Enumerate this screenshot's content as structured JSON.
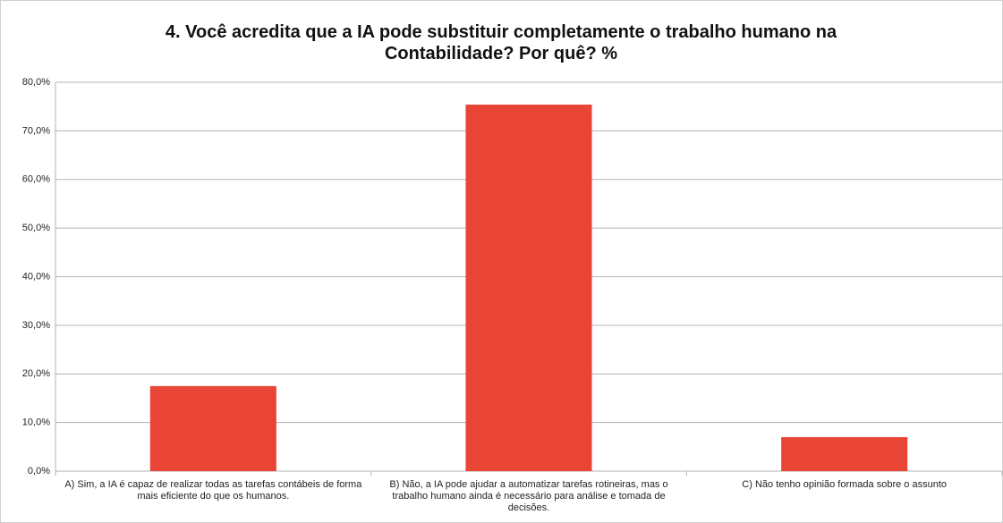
{
  "chart_data": {
    "type": "bar",
    "title": "4. Você acredita que a IA pode substituir completamente o trabalho humano na Contabilidade? Por quê? %",
    "categories": [
      "A) Sim, a IA é capaz de realizar todas as tarefas contábeis de forma mais eficiente do que os humanos.",
      "B) Não, a IA pode ajudar a automatizar tarefas rotineiras, mas o trabalho humano ainda é necessário para análise e tomada de decisões.",
      "C) Não tenho opinião formada sobre o assunto"
    ],
    "values": [
      17.5,
      75.4,
      7.0
    ],
    "color": "#e84536",
    "ylim": [
      0,
      80
    ],
    "yticks": [
      {
        "value": 0,
        "label": "0,0%"
      },
      {
        "value": 10,
        "label": "10,0%"
      },
      {
        "value": 20,
        "label": "20,0%"
      },
      {
        "value": 30,
        "label": "30,0%"
      },
      {
        "value": 40,
        "label": "40,0%"
      },
      {
        "value": 50,
        "label": "50,0%"
      },
      {
        "value": 60,
        "label": "60,0%"
      },
      {
        "value": 70,
        "label": "70,0%"
      },
      {
        "value": 80,
        "label": "80,0%"
      }
    ],
    "grid": true
  }
}
